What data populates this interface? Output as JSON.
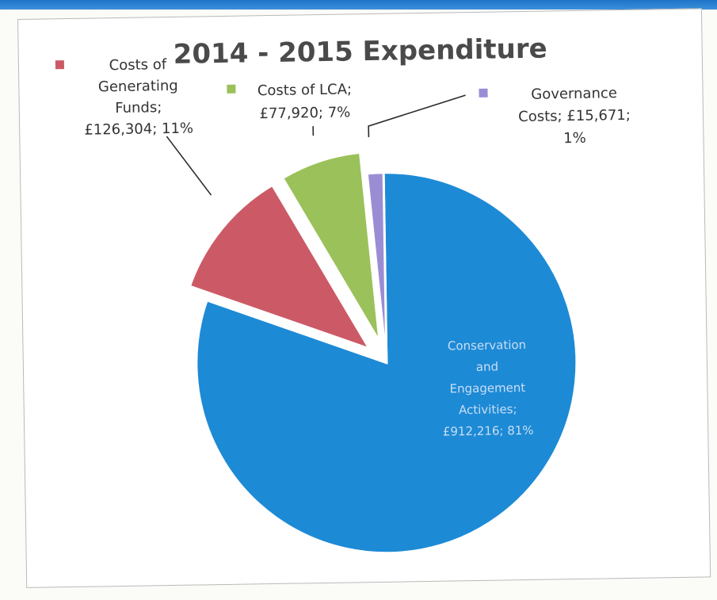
{
  "chart_data": {
    "type": "pie",
    "title": "2014 - 2015 Expenditure",
    "slices": [
      {
        "name": "Conservation and Engagement Activities",
        "value": 912216,
        "percent": 81,
        "color": "#1d8ad6",
        "label_lines": [
          "Conservation",
          "and",
          "Engagement",
          "Activities;",
          "£912,216; 81%"
        ],
        "exploded": false
      },
      {
        "name": "Costs of Generating Funds",
        "value": 126304,
        "percent": 11,
        "color": "#cc5a66",
        "label_lines": [
          "Costs of",
          "Generating",
          "Funds;",
          "£126,304; 11%"
        ],
        "exploded": true
      },
      {
        "name": "Costs of LCA",
        "value": 77920,
        "percent": 7,
        "color": "#9bc15a",
        "label_lines": [
          "Costs of LCA;",
          "£77,920; 7%"
        ],
        "exploded": true
      },
      {
        "name": "Governance Costs",
        "value": 15671,
        "percent": 1,
        "color": "#9b8dd4",
        "label_lines": [
          "Governance",
          "Costs; £15,671;",
          "1%"
        ],
        "exploded": false
      }
    ],
    "legend": "inline-with-labels"
  }
}
